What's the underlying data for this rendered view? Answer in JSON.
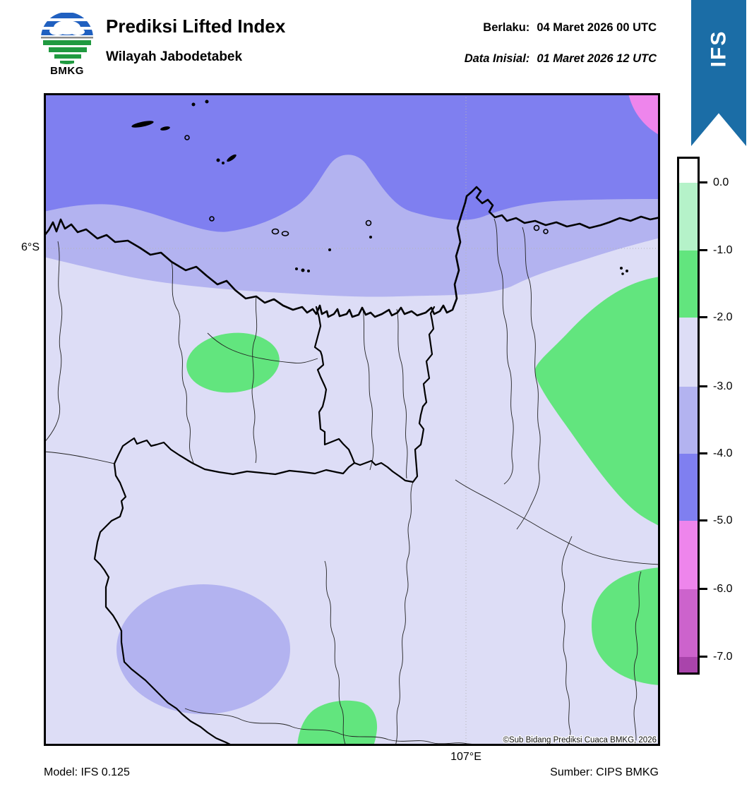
{
  "header": {
    "logo_text": "BMKG",
    "title": "Prediksi Lifted Index",
    "subtitle": "Wilayah Jabodetabek",
    "valid_label": "Berlaku:",
    "valid_value": "04 Maret 2026 00 UTC",
    "init_label": "Data Inisial:",
    "init_value": "01 Maret 2026 12 UTC"
  },
  "ribbon": {
    "label": "IFS",
    "color": "#1B6DA6"
  },
  "map": {
    "lat_tick": "6°S",
    "lon_tick": "107°E",
    "copyright": "©Sub Bidang Prediksi Cuaca BMKG, 2026",
    "colors": {
      "li_m2_m3_pale_lavender": "#DDDDF6",
      "li_m3_m4_periwinkle": "#B3B3F0",
      "li_m4_m5_blueviolet": "#7F7FF0",
      "li_m5_m6_violet": "#EE85EC",
      "li_m1_m2_green": "#62E57E",
      "boundary": "#000000",
      "gridline": "#b5b5b5"
    }
  },
  "legend": {
    "tick_labels": [
      "0.0",
      "-1.0",
      "-2.0",
      "-3.0",
      "-4.0",
      "-5.0",
      "-6.0",
      "-7.0"
    ],
    "segment_colors": [
      "#FFFFFF",
      "#B5F2C9",
      "#62E57E",
      "#DDDDF6",
      "#B3B3F0",
      "#7F7FF0",
      "#EE85EC",
      "#CC63CC",
      "#A944AB"
    ]
  },
  "footer": {
    "model": "Model: IFS 0.125",
    "source": "Sumber: CIPS BMKG"
  }
}
